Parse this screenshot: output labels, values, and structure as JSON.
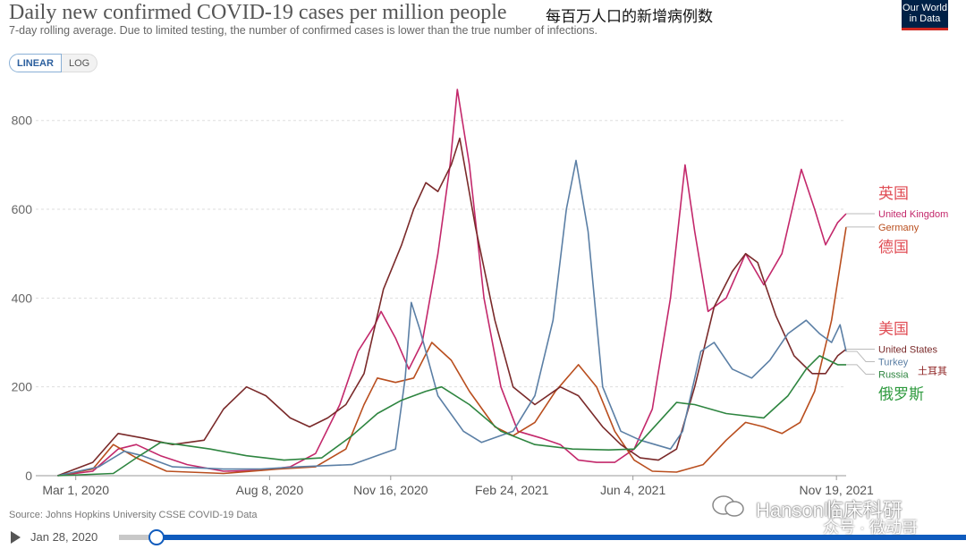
{
  "title": "Daily new confirmed COVID-19 cases per million people",
  "annotation_title": "每百万人口的新增病例数",
  "subtitle": "7-day rolling average. Due to limited testing, the number of confirmed cases is lower than the true number of infections.",
  "logo": {
    "line1": "Our World",
    "line2": "in Data"
  },
  "scale_toggle": {
    "linear": "LINEAR",
    "log": "LOG",
    "active": "linear"
  },
  "source": "Source: Johns Hopkins University CSSE COVID-19 Data",
  "timeline": {
    "start_label": "Jan 28, 2020",
    "play_icon": "play-icon",
    "position": 0.04
  },
  "watermark": {
    "main": "Hanson临床科研",
    "sub": "众号 · 微动哥"
  },
  "annotations": [
    {
      "text": "英国",
      "color": "#e04d55",
      "series": "United Kingdom",
      "pos": "above"
    },
    {
      "text": "德国",
      "color": "#e04d55",
      "series": "Germany",
      "pos": "below"
    },
    {
      "text": "美国",
      "color": "#e04d55",
      "series": "United States",
      "pos": "above"
    },
    {
      "text": "土耳其",
      "color": "#8a1c1c",
      "series": "Turkey",
      "pos": "right"
    },
    {
      "text": "俄罗斯",
      "color": "#2e9a3e",
      "series": "Russia",
      "pos": "below"
    }
  ],
  "chart_data": {
    "type": "line",
    "xlabel": "",
    "ylabel": "",
    "ylim": [
      0,
      880
    ],
    "yticks": [
      0,
      200,
      400,
      600,
      800
    ],
    "x_range": [
      "2020-01-28",
      "2021-11-27"
    ],
    "x_ticks": [
      {
        "date": "2020-03-01",
        "label": "Mar 1, 2020"
      },
      {
        "date": "2020-08-08",
        "label": "Aug 8, 2020"
      },
      {
        "date": "2020-11-16",
        "label": "Nov 16, 2020"
      },
      {
        "date": "2021-02-24",
        "label": "Feb 24, 2021"
      },
      {
        "date": "2021-06-04",
        "label": "Jun 4, 2021"
      },
      {
        "date": "2021-11-19",
        "label": "Nov 19, 2021"
      }
    ],
    "grid": true,
    "legend": "right",
    "series": [
      {
        "name": "United Kingdom",
        "color": "#c3286b",
        "points": [
          [
            "2020-02-15",
            0
          ],
          [
            "2020-03-15",
            10
          ],
          [
            "2020-04-05",
            60
          ],
          [
            "2020-04-20",
            70
          ],
          [
            "2020-05-10",
            45
          ],
          [
            "2020-06-01",
            25
          ],
          [
            "2020-07-01",
            10
          ],
          [
            "2020-08-01",
            12
          ],
          [
            "2020-08-25",
            20
          ],
          [
            "2020-09-15",
            50
          ],
          [
            "2020-10-05",
            160
          ],
          [
            "2020-10-20",
            280
          ],
          [
            "2020-11-03",
            340
          ],
          [
            "2020-11-08",
            370
          ],
          [
            "2020-11-20",
            310
          ],
          [
            "2020-12-01",
            240
          ],
          [
            "2020-12-12",
            300
          ],
          [
            "2020-12-25",
            500
          ],
          [
            "2021-01-04",
            700
          ],
          [
            "2021-01-10",
            870
          ],
          [
            "2021-01-20",
            700
          ],
          [
            "2021-02-01",
            400
          ],
          [
            "2021-02-15",
            200
          ],
          [
            "2021-03-01",
            100
          ],
          [
            "2021-03-20",
            85
          ],
          [
            "2021-04-05",
            70
          ],
          [
            "2021-04-20",
            35
          ],
          [
            "2021-05-05",
            30
          ],
          [
            "2021-05-20",
            30
          ],
          [
            "2021-06-05",
            60
          ],
          [
            "2021-06-20",
            150
          ],
          [
            "2021-07-05",
            400
          ],
          [
            "2021-07-17",
            700
          ],
          [
            "2021-07-25",
            550
          ],
          [
            "2021-08-05",
            370
          ],
          [
            "2021-08-20",
            400
          ],
          [
            "2021-09-05",
            500
          ],
          [
            "2021-09-20",
            430
          ],
          [
            "2021-10-05",
            500
          ],
          [
            "2021-10-21",
            690
          ],
          [
            "2021-11-01",
            600
          ],
          [
            "2021-11-10",
            520
          ],
          [
            "2021-11-20",
            570
          ],
          [
            "2021-11-27",
            590
          ]
        ]
      },
      {
        "name": "Germany",
        "color": "#b94e1e",
        "points": [
          [
            "2020-02-15",
            0
          ],
          [
            "2020-03-15",
            15
          ],
          [
            "2020-04-01",
            70
          ],
          [
            "2020-04-20",
            40
          ],
          [
            "2020-05-15",
            10
          ],
          [
            "2020-07-01",
            5
          ],
          [
            "2020-08-15",
            15
          ],
          [
            "2020-09-15",
            20
          ],
          [
            "2020-10-10",
            60
          ],
          [
            "2020-10-25",
            160
          ],
          [
            "2020-11-05",
            220
          ],
          [
            "2020-11-20",
            210
          ],
          [
            "2020-12-05",
            220
          ],
          [
            "2020-12-20",
            300
          ],
          [
            "2021-01-05",
            260
          ],
          [
            "2021-01-20",
            190
          ],
          [
            "2021-02-10",
            110
          ],
          [
            "2021-02-25",
            90
          ],
          [
            "2021-03-15",
            120
          ],
          [
            "2021-04-01",
            190
          ],
          [
            "2021-04-20",
            250
          ],
          [
            "2021-05-05",
            200
          ],
          [
            "2021-05-20",
            100
          ],
          [
            "2021-06-05",
            35
          ],
          [
            "2021-06-20",
            10
          ],
          [
            "2021-07-10",
            8
          ],
          [
            "2021-08-01",
            25
          ],
          [
            "2021-08-20",
            80
          ],
          [
            "2021-09-05",
            120
          ],
          [
            "2021-09-20",
            110
          ],
          [
            "2021-10-05",
            95
          ],
          [
            "2021-10-20",
            120
          ],
          [
            "2021-11-01",
            190
          ],
          [
            "2021-11-15",
            350
          ],
          [
            "2021-11-27",
            560
          ]
        ]
      },
      {
        "name": "United States",
        "color": "#7a2a2a",
        "points": [
          [
            "2020-02-15",
            0
          ],
          [
            "2020-03-15",
            30
          ],
          [
            "2020-04-05",
            95
          ],
          [
            "2020-04-25",
            85
          ],
          [
            "2020-05-20",
            70
          ],
          [
            "2020-06-15",
            80
          ],
          [
            "2020-07-01",
            150
          ],
          [
            "2020-07-20",
            200
          ],
          [
            "2020-08-05",
            180
          ],
          [
            "2020-08-25",
            130
          ],
          [
            "2020-09-10",
            110
          ],
          [
            "2020-09-25",
            130
          ],
          [
            "2020-10-10",
            160
          ],
          [
            "2020-10-25",
            230
          ],
          [
            "2020-11-10",
            420
          ],
          [
            "2020-11-25",
            520
          ],
          [
            "2020-12-05",
            600
          ],
          [
            "2020-12-15",
            660
          ],
          [
            "2020-12-25",
            640
          ],
          [
            "2021-01-05",
            700
          ],
          [
            "2021-01-12",
            760
          ],
          [
            "2021-01-25",
            560
          ],
          [
            "2021-02-10",
            350
          ],
          [
            "2021-02-25",
            200
          ],
          [
            "2021-03-15",
            160
          ],
          [
            "2021-04-05",
            200
          ],
          [
            "2021-04-20",
            180
          ],
          [
            "2021-05-10",
            110
          ],
          [
            "2021-05-25",
            70
          ],
          [
            "2021-06-10",
            40
          ],
          [
            "2021-06-25",
            35
          ],
          [
            "2021-07-10",
            60
          ],
          [
            "2021-07-25",
            200
          ],
          [
            "2021-08-10",
            380
          ],
          [
            "2021-08-25",
            460
          ],
          [
            "2021-09-05",
            500
          ],
          [
            "2021-09-15",
            480
          ],
          [
            "2021-09-30",
            360
          ],
          [
            "2021-10-15",
            270
          ],
          [
            "2021-10-30",
            230
          ],
          [
            "2021-11-10",
            230
          ],
          [
            "2021-11-20",
            270
          ],
          [
            "2021-11-27",
            285
          ]
        ]
      },
      {
        "name": "Turkey",
        "color": "#5b7fa5",
        "points": [
          [
            "2020-02-15",
            0
          ],
          [
            "2020-03-20",
            20
          ],
          [
            "2020-04-10",
            55
          ],
          [
            "2020-04-25",
            45
          ],
          [
            "2020-05-20",
            20
          ],
          [
            "2020-07-01",
            15
          ],
          [
            "2020-08-01",
            15
          ],
          [
            "2020-09-01",
            20
          ],
          [
            "2020-10-15",
            25
          ],
          [
            "2020-11-20",
            60
          ],
          [
            "2020-11-28",
            220
          ],
          [
            "2020-12-03",
            390
          ],
          [
            "2020-12-10",
            330
          ],
          [
            "2020-12-25",
            180
          ],
          [
            "2021-01-15",
            100
          ],
          [
            "2021-01-30",
            75
          ],
          [
            "2021-02-25",
            100
          ],
          [
            "2021-03-15",
            180
          ],
          [
            "2021-03-30",
            350
          ],
          [
            "2021-04-10",
            600
          ],
          [
            "2021-04-18",
            710
          ],
          [
            "2021-04-28",
            550
          ],
          [
            "2021-05-10",
            200
          ],
          [
            "2021-05-25",
            100
          ],
          [
            "2021-06-10",
            80
          ],
          [
            "2021-07-05",
            60
          ],
          [
            "2021-07-15",
            100
          ],
          [
            "2021-07-30",
            280
          ],
          [
            "2021-08-10",
            300
          ],
          [
            "2021-08-25",
            240
          ],
          [
            "2021-09-10",
            220
          ],
          [
            "2021-09-25",
            260
          ],
          [
            "2021-10-10",
            320
          ],
          [
            "2021-10-25",
            350
          ],
          [
            "2021-11-05",
            320
          ],
          [
            "2021-11-15",
            300
          ],
          [
            "2021-11-22",
            340
          ],
          [
            "2021-11-27",
            280
          ]
        ]
      },
      {
        "name": "Russia",
        "color": "#2e8540",
        "points": [
          [
            "2020-02-15",
            0
          ],
          [
            "2020-04-01",
            5
          ],
          [
            "2020-04-20",
            40
          ],
          [
            "2020-05-10",
            75
          ],
          [
            "2020-05-25",
            70
          ],
          [
            "2020-06-20",
            60
          ],
          [
            "2020-07-20",
            45
          ],
          [
            "2020-08-20",
            35
          ],
          [
            "2020-09-20",
            40
          ],
          [
            "2020-10-15",
            90
          ],
          [
            "2020-11-05",
            140
          ],
          [
            "2020-11-25",
            170
          ],
          [
            "2020-12-15",
            190
          ],
          [
            "2020-12-28",
            200
          ],
          [
            "2021-01-20",
            160
          ],
          [
            "2021-02-15",
            100
          ],
          [
            "2021-03-15",
            70
          ],
          [
            "2021-04-15",
            60
          ],
          [
            "2021-05-15",
            58
          ],
          [
            "2021-06-05",
            60
          ],
          [
            "2021-06-25",
            120
          ],
          [
            "2021-07-10",
            165
          ],
          [
            "2021-07-25",
            160
          ],
          [
            "2021-08-20",
            140
          ],
          [
            "2021-09-20",
            130
          ],
          [
            "2021-10-10",
            180
          ],
          [
            "2021-10-25",
            240
          ],
          [
            "2021-11-05",
            270
          ],
          [
            "2021-11-20",
            250
          ],
          [
            "2021-11-27",
            250
          ]
        ]
      }
    ]
  }
}
